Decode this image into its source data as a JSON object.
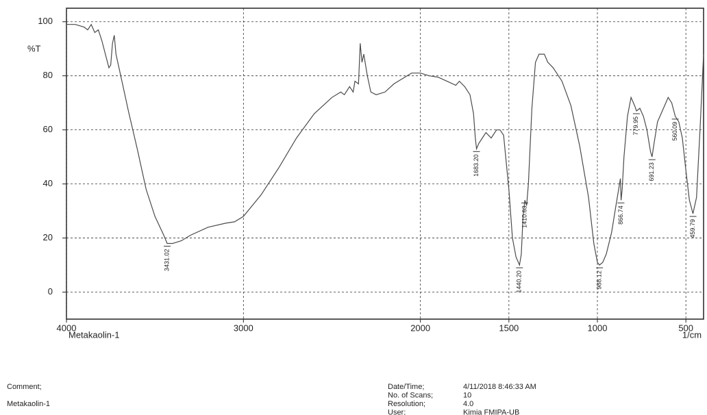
{
  "chart_data": {
    "type": "line",
    "y_label": "%T",
    "x_label": "1/cm",
    "sample_label": "Metakaolin-1",
    "xlim": [
      4000,
      400
    ],
    "ylim": [
      -10,
      105
    ],
    "xticks": [
      4000,
      3000,
      2000,
      1500,
      1000,
      500
    ],
    "yticks": [
      0,
      20,
      40,
      60,
      80,
      100
    ],
    "grid": true,
    "series": [
      {
        "color": "#4a4a4a",
        "x": [
          4000,
          3950,
          3900,
          3880,
          3860,
          3840,
          3820,
          3800,
          3780,
          3760,
          3750,
          3740,
          3730,
          3720,
          3700,
          3680,
          3650,
          3600,
          3550,
          3500,
          3450,
          3431,
          3400,
          3350,
          3300,
          3200,
          3100,
          3050,
          3000,
          2900,
          2800,
          2700,
          2600,
          2500,
          2450,
          2430,
          2400,
          2380,
          2370,
          2350,
          2340,
          2330,
          2320,
          2300,
          2280,
          2250,
          2200,
          2150,
          2100,
          2050,
          2000,
          1950,
          1900,
          1850,
          1800,
          1780,
          1750,
          1720,
          1700,
          1690,
          1683,
          1670,
          1650,
          1630,
          1600,
          1570,
          1550,
          1530,
          1500,
          1480,
          1460,
          1440,
          1430,
          1420,
          1410,
          1400,
          1390,
          1370,
          1350,
          1330,
          1300,
          1280,
          1250,
          1200,
          1150,
          1100,
          1050,
          1020,
          1000,
          988,
          970,
          950,
          920,
          900,
          880,
          870,
          866,
          860,
          850,
          830,
          810,
          790,
          779,
          760,
          740,
          720,
          700,
          691,
          680,
          660,
          640,
          620,
          600,
          580,
          560,
          540,
          520,
          500,
          480,
          460,
          440,
          420,
          400
        ],
        "values": [
          99,
          99,
          98,
          97,
          99,
          96,
          97,
          93,
          88,
          83,
          84,
          92,
          95,
          88,
          82,
          76,
          67,
          53,
          38,
          28,
          21,
          18,
          18,
          19,
          21,
          24,
          25.5,
          26,
          28,
          36,
          46,
          57,
          66,
          72,
          74,
          73,
          76,
          74,
          78,
          77,
          92,
          85,
          88,
          80,
          74,
          73,
          74,
          77,
          79,
          81,
          81,
          80,
          79.5,
          78,
          76.5,
          78,
          76,
          73,
          66,
          57,
          53,
          55,
          57,
          59,
          57,
          60,
          60,
          58,
          38,
          20,
          13,
          10,
          14,
          28,
          34,
          32,
          40,
          68,
          85,
          88,
          88,
          85,
          83,
          78,
          69,
          54,
          35,
          18,
          11,
          10,
          11,
          14,
          22,
          30,
          38,
          42,
          34,
          38,
          50,
          65,
          72,
          69,
          67,
          68,
          65,
          60,
          52,
          50,
          55,
          63,
          66,
          69,
          72,
          70,
          65,
          63,
          57,
          45,
          34,
          29,
          35,
          60,
          88
        ]
      }
    ],
    "annotations": [
      {
        "label": "3431.02",
        "x": 3431.02,
        "y": 18
      },
      {
        "label": "1683.20",
        "x": 1683.2,
        "y": 53
      },
      {
        "label": "1440.20",
        "x": 1440.2,
        "y": 10
      },
      {
        "label": "1410.63",
        "x": 1410.63,
        "y": 34
      },
      {
        "label": "988.12",
        "x": 988.12,
        "y": 10
      },
      {
        "label": "866.74",
        "x": 866.74,
        "y": 34
      },
      {
        "label": "779.95",
        "x": 779.95,
        "y": 67
      },
      {
        "label": "691.23",
        "x": 691.23,
        "y": 50
      },
      {
        "label": "560.09",
        "x": 560.09,
        "y": 65
      },
      {
        "label": "459.79",
        "x": 459.79,
        "y": 29
      }
    ]
  },
  "footer": {
    "comment_label": "Comment;",
    "comment": "Metakaolin-1",
    "rows": [
      [
        "Date/Time;",
        "4/11/2018 8:46:33 AM"
      ],
      [
        "No. of Scans;",
        "10"
      ],
      [
        "Resolution;",
        "4.0"
      ],
      [
        "User;",
        "Kimia FMIPA-UB"
      ]
    ]
  }
}
